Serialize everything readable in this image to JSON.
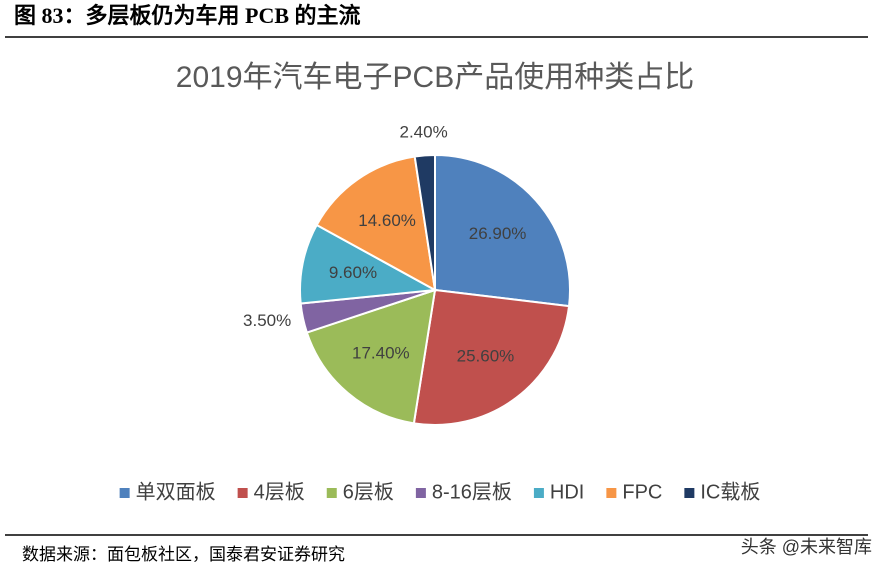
{
  "header": {
    "title": "图 83：多层板仍为车用 PCB 的主流"
  },
  "chart_data": {
    "type": "pie",
    "title": "2019年汽车电子PCB产品使用种类占比",
    "categories": [
      "单双面板",
      "4层板",
      "6层板",
      "8-16层板",
      "HDI",
      "FPC",
      "IC载板"
    ],
    "values": [
      26.9,
      25.6,
      17.4,
      3.5,
      9.6,
      14.6,
      2.4
    ],
    "value_labels": [
      "26.90%",
      "25.60%",
      "17.40%",
      "3.50%",
      "9.60%",
      "14.60%",
      "2.40%"
    ],
    "colors": [
      "#4f81bd",
      "#c0504d",
      "#9bbb59",
      "#8064a2",
      "#4bacc6",
      "#f79646",
      "#1f3a63"
    ],
    "legend": "bottom"
  },
  "footer": {
    "source": "数据来源：面包板社区，国泰君安证券研究",
    "watermark": "头条 @未来智库"
  }
}
